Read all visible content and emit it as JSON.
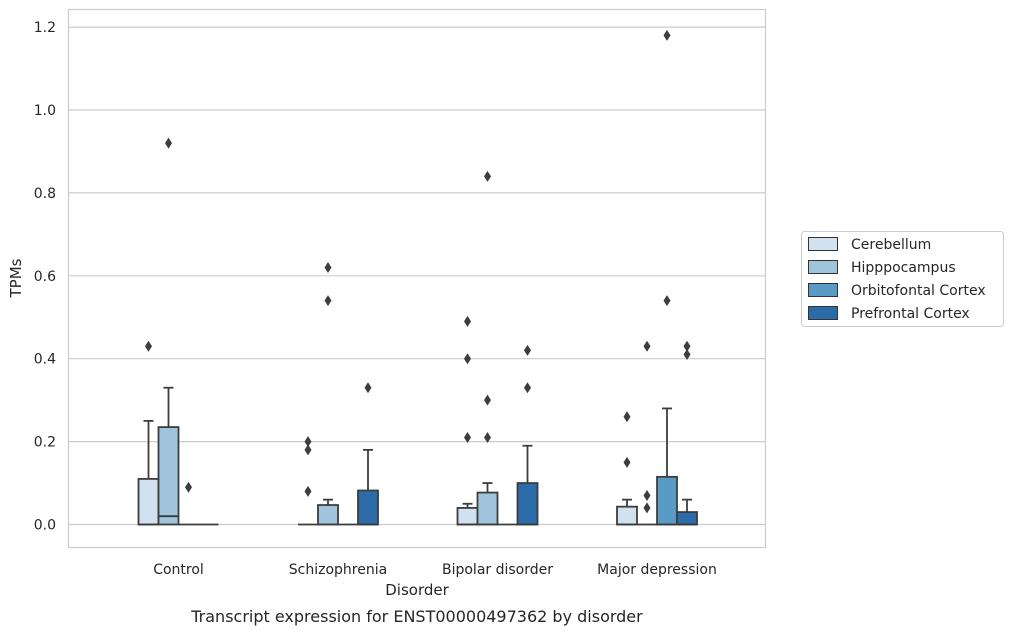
{
  "chart_data": {
    "type": "box",
    "title": "",
    "caption": "Transcript expression for ENST00000497362 by disorder",
    "xlabel": "Disorder",
    "ylabel": "TPMs",
    "ylim": [
      -0.057,
      1.24
    ],
    "yticks": [
      "0.0",
      "0.2",
      "0.4",
      "0.6",
      "0.8",
      "1.0",
      "1.2"
    ],
    "categories": [
      "Control",
      "Schizophrenia",
      "Bipolar disorder",
      "Major depression"
    ],
    "grid": "horizontal",
    "legend_position": "right",
    "series": [
      {
        "name": "Cerebellum",
        "color": "#d1e1ef",
        "boxes": [
          {
            "whislo": 0,
            "q1": 0,
            "med": 0,
            "q3": 0.11,
            "whishi": 0.25,
            "fliers": [
              0.43
            ]
          },
          {
            "whislo": 0,
            "q1": 0,
            "med": 0,
            "q3": 0,
            "whishi": 0,
            "fliers": [
              0.2,
              0.18,
              0.08
            ]
          },
          {
            "whislo": 0,
            "q1": 0,
            "med": 0,
            "q3": 0.04,
            "whishi": 0.05,
            "fliers": [
              0.49,
              0.4,
              0.21
            ]
          },
          {
            "whislo": 0,
            "q1": 0,
            "med": 0,
            "q3": 0.043,
            "whishi": 0.06,
            "fliers": [
              0.26,
              0.15
            ]
          }
        ]
      },
      {
        "name": "Hipppocampus",
        "color": "#9fc4dc",
        "boxes": [
          {
            "whislo": 0,
            "q1": 0,
            "med": 0.02,
            "q3": 0.235,
            "whishi": 0.33,
            "fliers": [
              0.92
            ]
          },
          {
            "whislo": 0,
            "q1": 0,
            "med": 0,
            "q3": 0.047,
            "whishi": 0.06,
            "fliers": [
              0.62,
              0.54
            ]
          },
          {
            "whislo": 0,
            "q1": 0,
            "med": 0,
            "q3": 0.077,
            "whishi": 0.1,
            "fliers": [
              0.84,
              0.3,
              0.21
            ]
          },
          {
            "whislo": 0,
            "q1": 0,
            "med": 0,
            "q3": 0,
            "whishi": 0,
            "fliers": [
              0.43,
              0.07,
              0.04
            ]
          }
        ]
      },
      {
        "name": "Orbitofontal Cortex",
        "color": "#5a9ac6",
        "boxes": [
          {
            "whislo": 0,
            "q1": 0,
            "med": 0,
            "q3": 0,
            "whishi": 0,
            "fliers": [
              0.09
            ]
          },
          {
            "whislo": 0,
            "q1": 0,
            "med": 0,
            "q3": 0,
            "whishi": 0,
            "fliers": []
          },
          {
            "whislo": 0,
            "q1": 0,
            "med": 0,
            "q3": 0,
            "whishi": 0,
            "fliers": []
          },
          {
            "whislo": 0,
            "q1": 0,
            "med": 0,
            "q3": 0.115,
            "whishi": 0.28,
            "fliers": [
              1.18,
              0.54
            ]
          }
        ]
      },
      {
        "name": "Prefrontal Cortex",
        "color": "#2b6ca8",
        "boxes": [
          {
            "whislo": 0,
            "q1": 0,
            "med": 0,
            "q3": 0,
            "whishi": 0,
            "fliers": []
          },
          {
            "whislo": 0,
            "q1": 0,
            "med": 0,
            "q3": 0.082,
            "whishi": 0.18,
            "fliers": [
              0.33
            ]
          },
          {
            "whislo": 0,
            "q1": 0,
            "med": 0,
            "q3": 0.1,
            "whishi": 0.19,
            "fliers": [
              0.42,
              0.33
            ]
          },
          {
            "whislo": 0,
            "q1": 0,
            "med": 0,
            "q3": 0.03,
            "whishi": 0.06,
            "fliers": [
              0.43,
              0.41
            ]
          }
        ]
      }
    ]
  }
}
